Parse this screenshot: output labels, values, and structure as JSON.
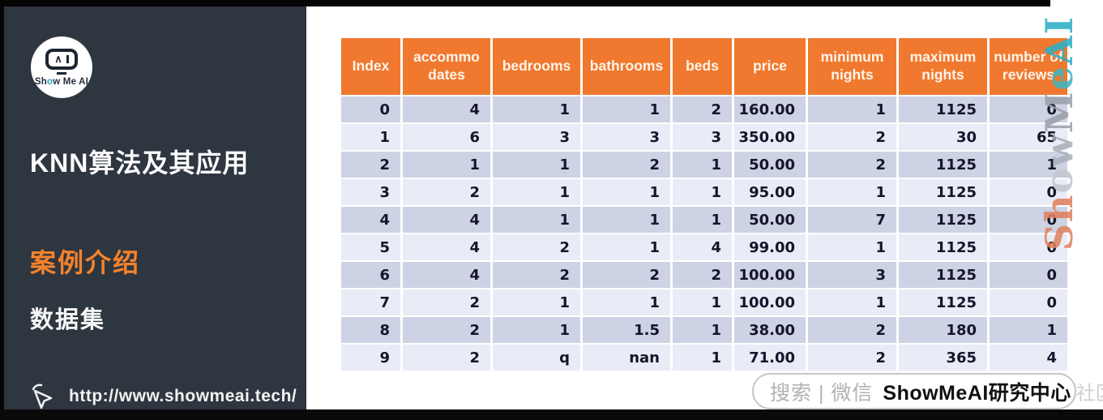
{
  "sidebar": {
    "logo": {
      "text_pre": "Sh",
      "text_o": "o",
      "text_post": "w Me AI",
      "eye_caret": "∧"
    },
    "title": "KNN算法及其应用",
    "subtitle": "案例介绍",
    "section": "数据集",
    "url": "http://www.showmeai.tech/"
  },
  "table": {
    "headers": [
      {
        "lines": [
          "Index"
        ]
      },
      {
        "lines": [
          "accommo",
          "dates"
        ]
      },
      {
        "lines": [
          "bedrooms"
        ]
      },
      {
        "lines": [
          "bathrooms"
        ]
      },
      {
        "lines": [
          "beds"
        ]
      },
      {
        "lines": [
          "price"
        ]
      },
      {
        "lines": [
          "minimum",
          "nights"
        ]
      },
      {
        "lines": [
          "maximum",
          "nights"
        ]
      },
      {
        "lines": [
          "number of",
          "reviews"
        ]
      }
    ],
    "rows": [
      [
        "0",
        "4",
        "1",
        "1",
        "2",
        "160.00",
        "1",
        "1125",
        "0"
      ],
      [
        "1",
        "6",
        "3",
        "3",
        "3",
        "350.00",
        "2",
        "30",
        "65"
      ],
      [
        "2",
        "1",
        "1",
        "2",
        "1",
        "50.00",
        "2",
        "1125",
        "1"
      ],
      [
        "3",
        "2",
        "1",
        "1",
        "1",
        "95.00",
        "1",
        "1125",
        "0"
      ],
      [
        "4",
        "4",
        "1",
        "1",
        "1",
        "50.00",
        "7",
        "1125",
        "0"
      ],
      [
        "5",
        "4",
        "2",
        "1",
        "4",
        "99.00",
        "1",
        "1125",
        "0"
      ],
      [
        "6",
        "4",
        "2",
        "2",
        "2",
        "100.00",
        "3",
        "1125",
        "0"
      ],
      [
        "7",
        "2",
        "1",
        "1",
        "1",
        "100.00",
        "1",
        "1125",
        "0"
      ],
      [
        "8",
        "2",
        "1",
        "1.5",
        "1",
        "38.00",
        "2",
        "180",
        "1"
      ],
      [
        "9",
        "2",
        "q",
        "nan",
        "1",
        "71.00",
        "2",
        "365",
        "4"
      ]
    ]
  },
  "watermark": {
    "segments": [
      {
        "text": "Sh",
        "color": "#e0825f"
      },
      {
        "text": "o",
        "color": "#c3c7cd"
      },
      {
        "text": "w",
        "color": "#aab0b8"
      },
      {
        "text": "M",
        "color": "#9aa2ab"
      },
      {
        "text": "e",
        "color": "#3bb5c4"
      },
      {
        "text": "A",
        "color": "#2db0c6"
      },
      {
        "text": "I",
        "color": "#2db0c6"
      }
    ]
  },
  "search_bar": {
    "placeholder": "搜索 | 微信",
    "brand": "ShowMeAI研究中心",
    "faint_suffix": "社区"
  },
  "colors": {
    "sidebar_bg": "#2e3640",
    "header_orange": "#f0792f",
    "row_dark": "#cdd2e4",
    "row_light": "#e9ebf6",
    "accent_orange": "#f5822b",
    "watermark_teal": "#2db0c6"
  }
}
